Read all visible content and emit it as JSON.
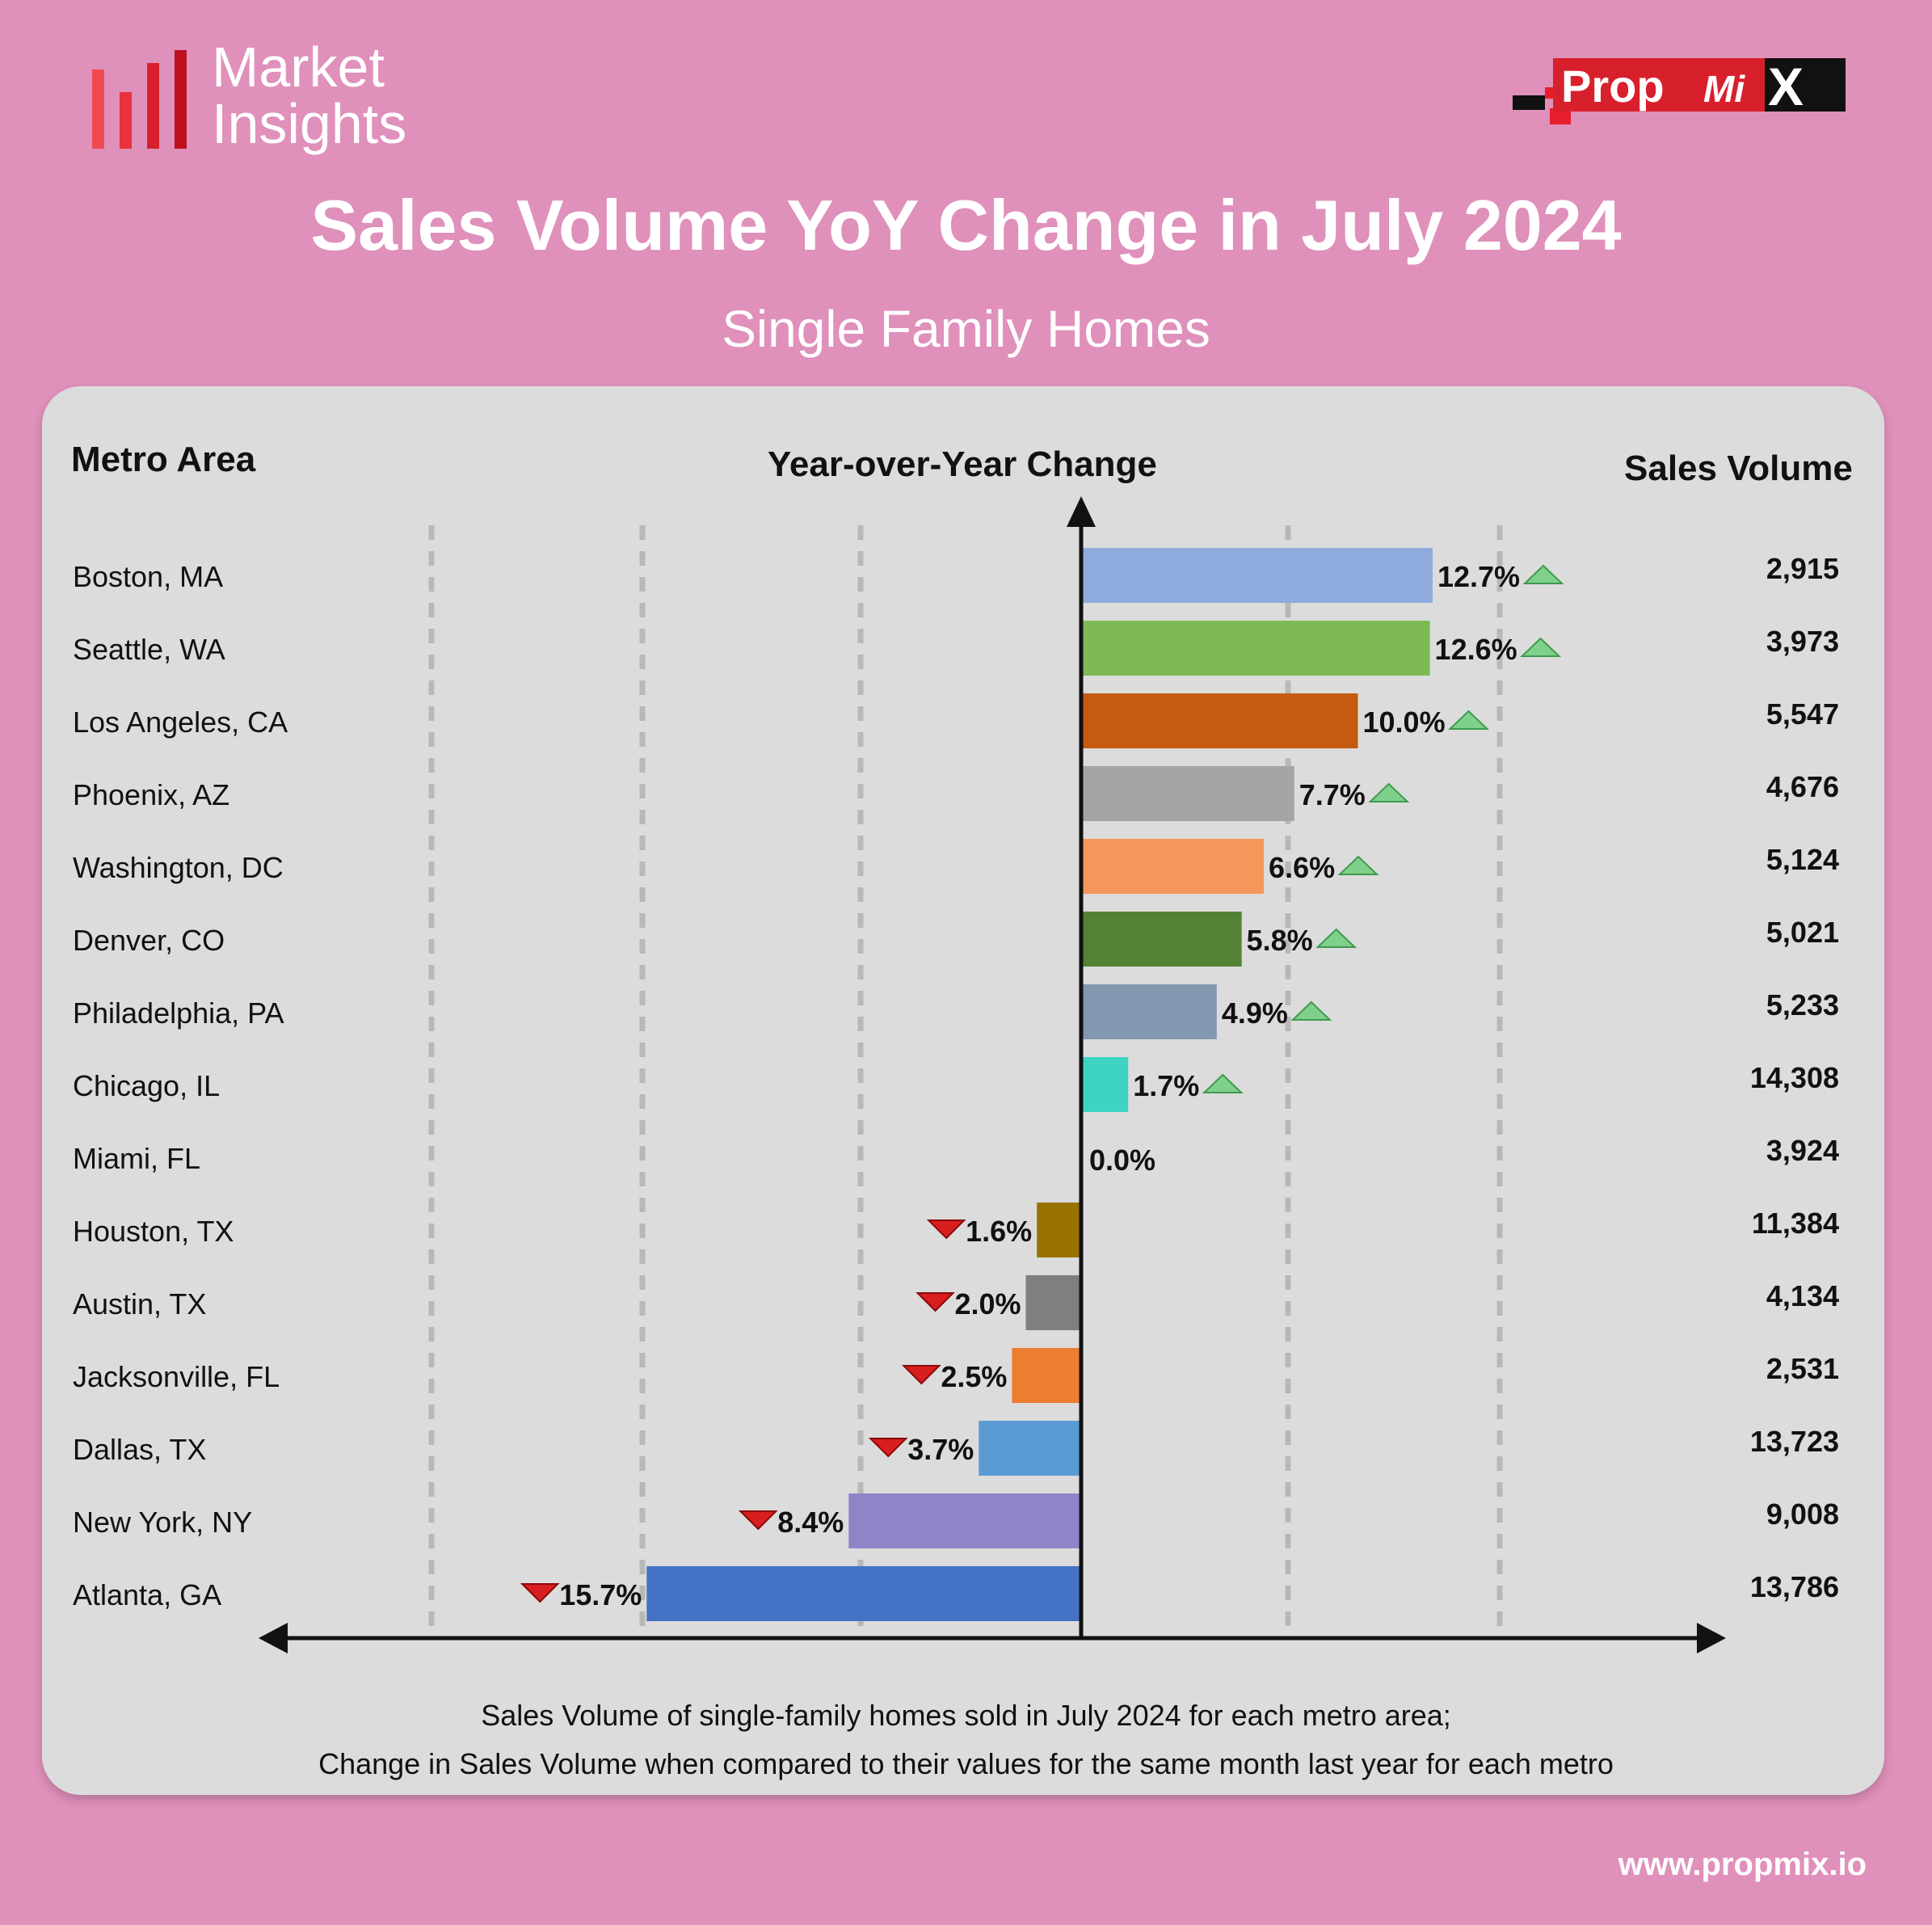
{
  "branding": {
    "report_line1": "Market",
    "report_line2": "Insights",
    "logo_text_a": "Prop",
    "logo_text_b": "Mi",
    "logo_text_c": "X",
    "website": "www.propmix.io"
  },
  "header": {
    "title": "Sales Volume YoY Change in July 2024",
    "subtitle": "Single Family Homes"
  },
  "columns": {
    "metro": "Metro Area",
    "change": "Year-over-Year Change",
    "volume": "Sales Volume"
  },
  "footer": {
    "note_line1": "Sales Volume of single-family homes sold in July 2024 for each metro area;",
    "note_line2": "Change in Sales Volume when compared to their values for the same month last year for each metro"
  },
  "colors": {
    "background": "#DF90BB",
    "panel": "#DCDCDC",
    "up_arrow": "#7FD08A",
    "down_arrow": "#D81E1E",
    "brand_red": "#E8323C"
  },
  "chart_data": {
    "type": "bar",
    "orientation": "horizontal",
    "title": "Sales Volume YoY Change in July 2024",
    "subtitle": "Single Family Homes",
    "xlabel": "Year-over-Year Change",
    "xlim": [
      -16.5,
      16.5
    ],
    "categories": [
      "Boston, MA",
      "Seattle, WA",
      "Los Angeles, CA",
      "Phoenix, AZ",
      "Washington, DC",
      "Denver, CO",
      "Philadelphia, PA",
      "Chicago, IL",
      "Miami, FL",
      "Houston, TX",
      "Austin, TX",
      "Jacksonville, FL",
      "Dallas, TX",
      "New York, NY",
      "Atlanta, GA"
    ],
    "values": [
      12.7,
      12.6,
      10.0,
      7.7,
      6.6,
      5.8,
      4.9,
      1.7,
      0.0,
      -1.6,
      -2.0,
      -2.5,
      -3.7,
      -8.4,
      -15.7
    ],
    "value_labels": [
      "12.7%",
      "12.6%",
      "10.0%",
      "7.7%",
      "6.6%",
      "5.8%",
      "4.9%",
      "1.7%",
      "0.0%",
      "1.6%",
      "2.0%",
      "2.5%",
      "3.7%",
      "8.4%",
      "15.7%"
    ],
    "sales_volume": [
      "2,915",
      "3,973",
      "5,547",
      "4,676",
      "5,124",
      "5,021",
      "5,233",
      "14,308",
      "3,924",
      "11,384",
      "4,134",
      "2,531",
      "13,723",
      "9,008",
      "13,786"
    ],
    "bar_colors": [
      "#8FAADC",
      "#7DBA55",
      "#C55A11",
      "#A5A5A5",
      "#F4975A",
      "#548235",
      "#8497B0",
      "#3DD4C2",
      "#DCDCDC",
      "#997300",
      "#7F7F7F",
      "#ED7D31",
      "#5B9BD5",
      "#8E85C8",
      "#4472C4"
    ]
  }
}
